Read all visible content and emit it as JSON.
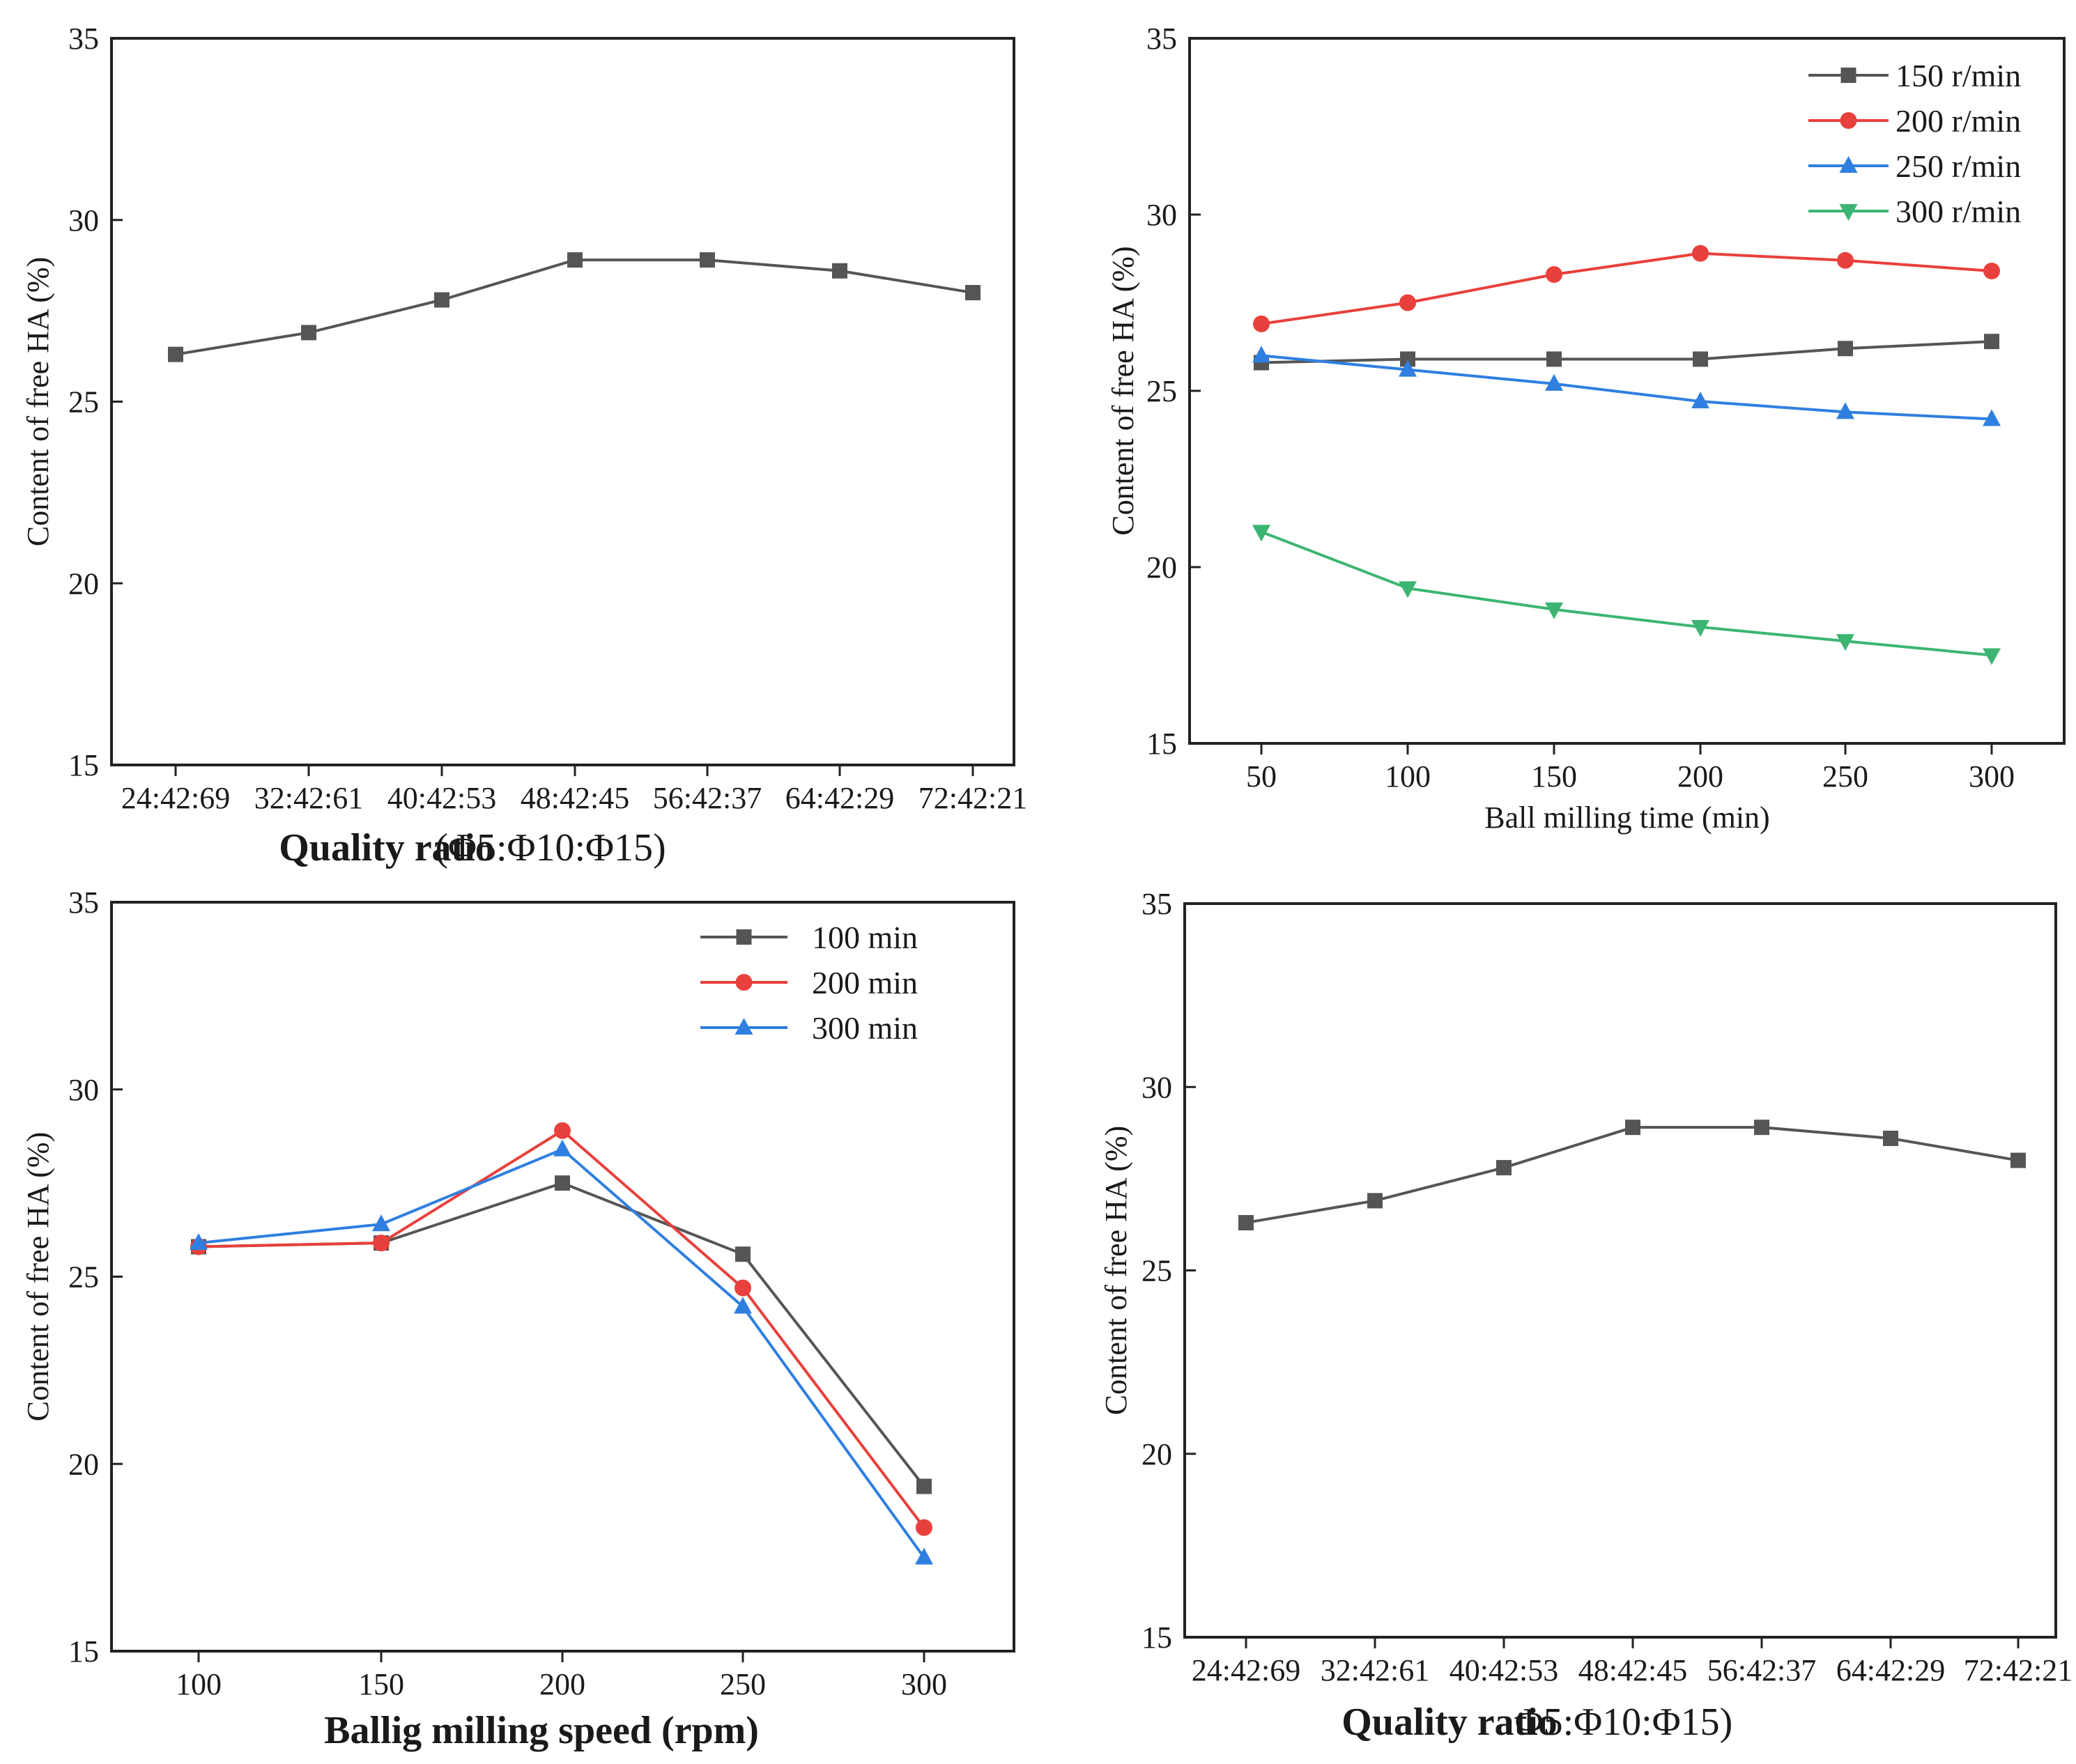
{
  "chart_data": [
    {
      "id": "panel-a",
      "type": "line",
      "title": "",
      "xlabel": "Quality ratio",
      "xlabel_suffix": "(Φ5:Φ10:Φ15)",
      "ylabel": "Content of free HA (%)",
      "ylim": [
        15,
        35
      ],
      "yticks": [
        15,
        20,
        25,
        30,
        35
      ],
      "grid": false,
      "legend": "none",
      "categories": [
        "24:42:69",
        "32:42:61",
        "40:42:53",
        "48:42:45",
        "56:42:37",
        "64:42:29",
        "72:42:21"
      ],
      "series": [
        {
          "name": "",
          "color": "#555555",
          "marker": "square",
          "values": [
            26.3,
            26.9,
            27.8,
            28.9,
            28.9,
            28.6,
            28.0
          ]
        }
      ]
    },
    {
      "id": "panel-b",
      "type": "line",
      "title": "",
      "xlabel": "Ball milling time (min)",
      "ylabel": "Content of free HA (%)",
      "ylim": [
        15,
        35
      ],
      "yticks": [
        15,
        20,
        25,
        30,
        35
      ],
      "grid": false,
      "legend": "top-right",
      "categories": [
        "50",
        "100",
        "150",
        "200",
        "250",
        "300"
      ],
      "series": [
        {
          "name": "150 r/min",
          "color": "#555555",
          "marker": "square",
          "values": [
            25.8,
            25.9,
            25.9,
            25.9,
            26.2,
            26.4
          ]
        },
        {
          "name": "200 r/min",
          "color": "#e8403c",
          "marker": "circle",
          "values": [
            26.9,
            27.5,
            28.3,
            28.9,
            28.7,
            28.4
          ]
        },
        {
          "name": "250 r/min",
          "color": "#2f7fe0",
          "marker": "triangle-up",
          "values": [
            26.0,
            25.6,
            25.2,
            24.7,
            24.4,
            24.2
          ]
        },
        {
          "name": "300 r/min",
          "color": "#3cb572",
          "marker": "triangle-down",
          "values": [
            21.0,
            19.4,
            18.8,
            18.3,
            17.9,
            17.5
          ]
        }
      ]
    },
    {
      "id": "panel-c",
      "type": "line",
      "title": "",
      "xlabel": "Ballig milling speed (rpm)",
      "ylabel": "Content of free HA (%)",
      "ylim": [
        15,
        35
      ],
      "yticks": [
        15,
        20,
        25,
        30,
        35
      ],
      "grid": false,
      "legend": "top-right",
      "categories": [
        "100",
        "150",
        "200",
        "250",
        "300"
      ],
      "series": [
        {
          "name": "100 min",
          "color": "#555555",
          "marker": "square",
          "values": [
            25.8,
            25.9,
            27.5,
            25.6,
            19.4
          ]
        },
        {
          "name": "200 min",
          "color": "#e8403c",
          "marker": "circle",
          "values": [
            25.8,
            25.9,
            28.9,
            24.7,
            18.3
          ]
        },
        {
          "name": "300 min",
          "color": "#2f7fe0",
          "marker": "triangle-up",
          "values": [
            25.9,
            26.4,
            28.4,
            24.2,
            17.5
          ]
        }
      ]
    },
    {
      "id": "panel-d",
      "type": "line",
      "title": "",
      "xlabel": "Quality ratio",
      "xlabel_suffix": "Φ5:Φ10:Φ15)",
      "ylabel": "Content of free HA (%)",
      "ylim": [
        15,
        35
      ],
      "yticks": [
        15,
        20,
        25,
        30,
        35
      ],
      "grid": false,
      "legend": "none",
      "categories": [
        "24:42:69",
        "32:42:61",
        "40:42:53",
        "48:42:45",
        "56:42:37",
        "64:42:29",
        "72:42:21"
      ],
      "series": [
        {
          "name": "",
          "color": "#555555",
          "marker": "square",
          "values": [
            26.3,
            26.9,
            27.8,
            28.9,
            28.9,
            28.6,
            28.0
          ]
        }
      ]
    }
  ]
}
